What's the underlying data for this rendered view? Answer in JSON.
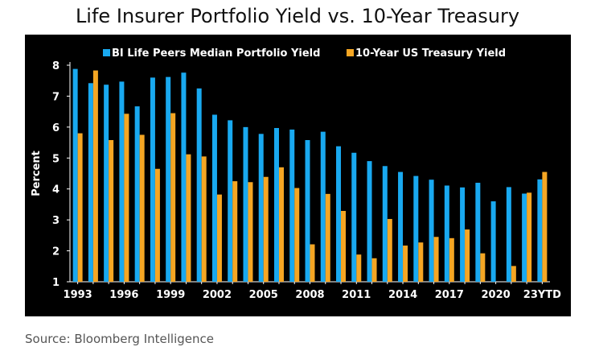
{
  "chart_data": {
    "type": "bar",
    "title": "Life Insurer Portfolio Yield vs. 10-Year Treasury",
    "ylabel": "Percent",
    "xlabel": "",
    "ylim": [
      1,
      8
    ],
    "yticks": [
      1,
      2,
      3,
      4,
      5,
      6,
      7,
      8
    ],
    "grid": false,
    "legend_position": "top",
    "categories": [
      "1993",
      "1994",
      "1995",
      "1996",
      "1997",
      "1998",
      "1999",
      "2000",
      "2001",
      "2002",
      "2003",
      "2004",
      "2005",
      "2006",
      "2007",
      "2008",
      "2009",
      "2010",
      "2011",
      "2012",
      "2013",
      "2014",
      "2015",
      "2016",
      "2017",
      "2018",
      "2019",
      "2020",
      "2021",
      "2022",
      "23YTD"
    ],
    "xtick_labels": [
      "1993",
      "1996",
      "1999",
      "2002",
      "2005",
      "2008",
      "2011",
      "2014",
      "2017",
      "2020",
      "23YTD"
    ],
    "series": [
      {
        "name": "BI Life Peers Median Portfolio Yield",
        "color": "#19a9f0",
        "values": [
          7.88,
          7.42,
          7.37,
          7.47,
          6.67,
          7.6,
          7.62,
          7.76,
          7.25,
          6.4,
          6.22,
          6.0,
          5.78,
          5.97,
          5.92,
          5.58,
          5.85,
          5.38,
          5.17,
          4.9,
          4.74,
          4.55,
          4.42,
          4.3,
          4.11,
          4.05,
          4.2,
          3.6,
          4.06,
          3.85,
          4.31
        ]
      },
      {
        "name": "10-Year US Treasury Yield",
        "color": "#f5a623",
        "values": [
          5.8,
          7.83,
          5.58,
          6.43,
          5.75,
          4.65,
          6.45,
          5.12,
          5.05,
          3.82,
          4.25,
          4.22,
          4.39,
          4.7,
          4.03,
          2.21,
          3.84,
          3.29,
          1.88,
          1.76,
          3.03,
          2.17,
          2.27,
          2.45,
          2.41,
          2.69,
          1.92,
          0.93,
          1.51,
          3.88,
          4.55
        ]
      }
    ]
  },
  "source": "Source: Bloomberg Intelligence"
}
